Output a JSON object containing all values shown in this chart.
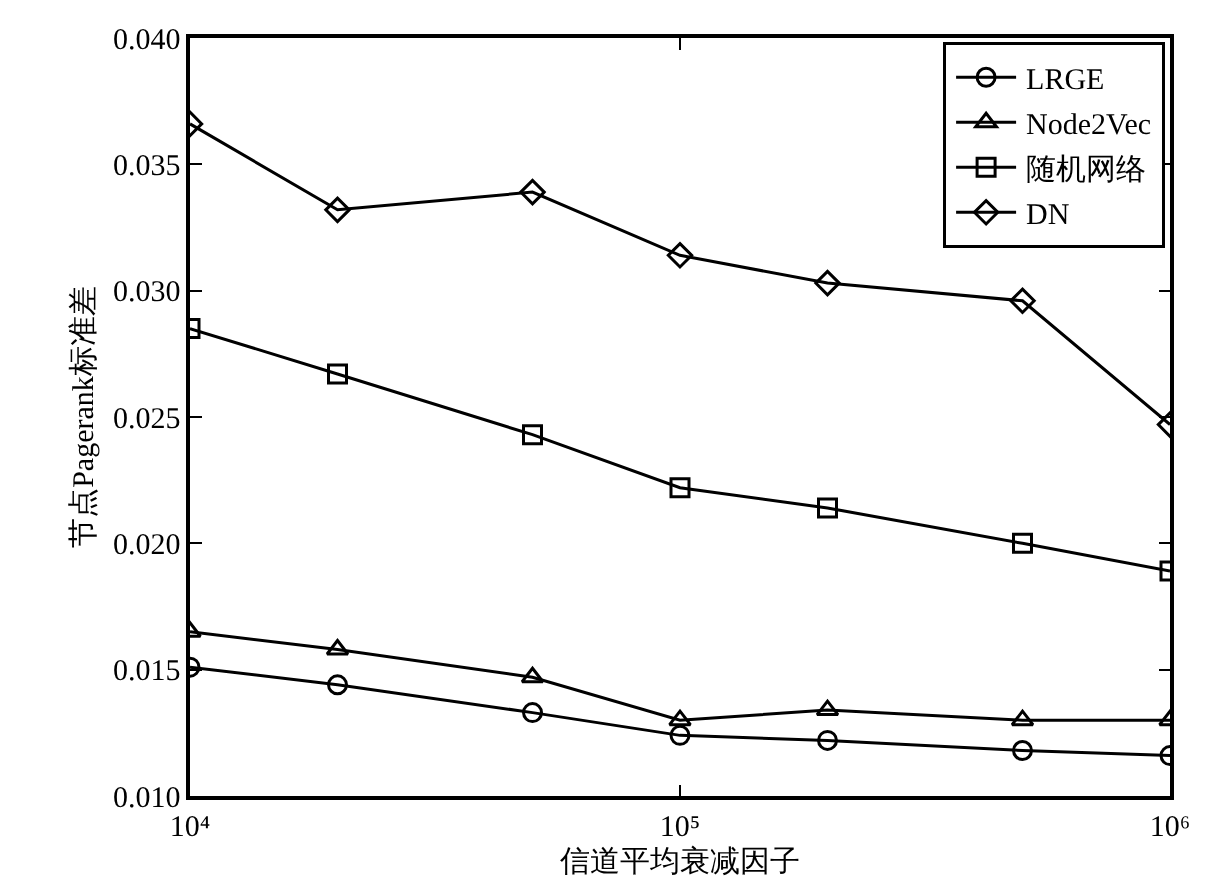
{
  "chart_data": {
    "type": "line",
    "xlabel": "信道平均衰减因子",
    "ylabel": "节点Pagerank标准差",
    "log": "x",
    "grid": false,
    "legend": "top right",
    "line_style": "solid",
    "x": [
      10000,
      20000,
      50000,
      100000,
      200000,
      500000,
      1000000
    ],
    "xlim": [
      10000,
      1000000
    ],
    "xticks": [
      {
        "value": 10000,
        "label": "10⁴"
      },
      {
        "value": 100000,
        "label": "10⁵"
      },
      {
        "value": 1000000,
        "label": "10⁶"
      }
    ],
    "ylim": [
      0.01,
      0.04
    ],
    "yticks": [
      {
        "value": 0.01,
        "label": "0.010"
      },
      {
        "value": 0.015,
        "label": "0.015"
      },
      {
        "value": 0.02,
        "label": "0.020"
      },
      {
        "value": 0.025,
        "label": "0.025"
      },
      {
        "value": 0.03,
        "label": "0.030"
      },
      {
        "value": 0.035,
        "label": "0.035"
      },
      {
        "value": 0.04,
        "label": "0.040"
      }
    ],
    "series": [
      {
        "name": "LRGE",
        "color": "#000000",
        "marker": "circle",
        "values": [
          0.0151,
          0.0144,
          0.0133,
          0.0124,
          0.0122,
          0.0118,
          0.0116
        ]
      },
      {
        "name": "Node2Vec",
        "color": "#000000",
        "marker": "triangle",
        "values": [
          0.0165,
          0.0158,
          0.0147,
          0.013,
          0.0134,
          0.013,
          0.013
        ]
      },
      {
        "name": "随机网络",
        "color": "#000000",
        "marker": "square",
        "values": [
          0.0285,
          0.0267,
          0.0243,
          0.0222,
          0.0214,
          0.02,
          0.0189
        ]
      },
      {
        "name": "DN",
        "color": "#000000",
        "marker": "diamond",
        "values": [
          0.0366,
          0.0332,
          0.0339,
          0.0314,
          0.0303,
          0.0296,
          0.0247
        ]
      }
    ]
  }
}
